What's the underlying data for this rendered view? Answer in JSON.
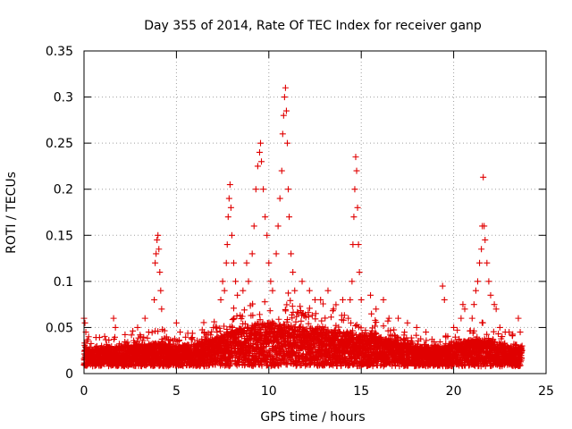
{
  "chart_data": {
    "type": "scatter",
    "title": "Day 355 of 2014, Rate Of TEC Index for receiver ganp",
    "xlabel": "GPS time / hours",
    "ylabel": "ROTI / TECUs",
    "xlim": [
      0,
      25
    ],
    "ylim": [
      0,
      0.35
    ],
    "x_ticks": [
      0,
      5,
      10,
      15,
      20,
      25
    ],
    "x_tick_labels": [
      "0",
      "5",
      "10",
      "15",
      "20",
      "25"
    ],
    "y_ticks": [
      0,
      0.05,
      0.1,
      0.15,
      0.2,
      0.25,
      0.3,
      0.35
    ],
    "y_tick_labels": [
      "0",
      "0.05",
      "0.1",
      "0.15",
      "0.2",
      "0.25",
      "0.3",
      "0.35"
    ],
    "grid": true,
    "marker": "plus",
    "marker_color": "#e00000",
    "series": [
      {
        "name": "ROTI",
        "points": [
          [
            0.0,
            0.06
          ],
          [
            0.05,
            0.055
          ],
          [
            0.1,
            0.045
          ],
          [
            0.15,
            0.035
          ],
          [
            0.2,
            0.025
          ],
          [
            0.25,
            0.04
          ],
          [
            0.3,
            0.02
          ],
          [
            1.6,
            0.06
          ],
          [
            1.7,
            0.05
          ],
          [
            2.9,
            0.05
          ],
          [
            3.3,
            0.06
          ],
          [
            3.5,
            0.045
          ],
          [
            3.8,
            0.08
          ],
          [
            3.85,
            0.12
          ],
          [
            3.9,
            0.13
          ],
          [
            3.95,
            0.145
          ],
          [
            4.0,
            0.15
          ],
          [
            4.05,
            0.135
          ],
          [
            4.1,
            0.11
          ],
          [
            4.15,
            0.09
          ],
          [
            4.2,
            0.07
          ],
          [
            5.0,
            0.055
          ],
          [
            5.2,
            0.045
          ],
          [
            6.5,
            0.045
          ],
          [
            7.0,
            0.05
          ],
          [
            7.2,
            0.045
          ],
          [
            7.4,
            0.08
          ],
          [
            7.5,
            0.1
          ],
          [
            7.6,
            0.09
          ],
          [
            7.7,
            0.12
          ],
          [
            7.75,
            0.14
          ],
          [
            7.8,
            0.17
          ],
          [
            7.85,
            0.19
          ],
          [
            7.9,
            0.205
          ],
          [
            7.95,
            0.18
          ],
          [
            8.0,
            0.15
          ],
          [
            8.1,
            0.12
          ],
          [
            8.2,
            0.1
          ],
          [
            8.3,
            0.085
          ],
          [
            8.6,
            0.09
          ],
          [
            8.8,
            0.12
          ],
          [
            8.9,
            0.1
          ],
          [
            9.1,
            0.13
          ],
          [
            9.2,
            0.16
          ],
          [
            9.3,
            0.2
          ],
          [
            9.4,
            0.225
          ],
          [
            9.5,
            0.24
          ],
          [
            9.55,
            0.25
          ],
          [
            9.6,
            0.23
          ],
          [
            9.7,
            0.2
          ],
          [
            9.8,
            0.17
          ],
          [
            9.9,
            0.15
          ],
          [
            10.0,
            0.12
          ],
          [
            10.1,
            0.1
          ],
          [
            10.2,
            0.09
          ],
          [
            10.4,
            0.13
          ],
          [
            10.5,
            0.16
          ],
          [
            10.6,
            0.19
          ],
          [
            10.7,
            0.22
          ],
          [
            10.75,
            0.26
          ],
          [
            10.8,
            0.28
          ],
          [
            10.85,
            0.3
          ],
          [
            10.9,
            0.31
          ],
          [
            10.95,
            0.285
          ],
          [
            11.0,
            0.25
          ],
          [
            11.05,
            0.2
          ],
          [
            11.1,
            0.17
          ],
          [
            11.2,
            0.13
          ],
          [
            11.3,
            0.11
          ],
          [
            11.4,
            0.09
          ],
          [
            11.8,
            0.1
          ],
          [
            12.2,
            0.09
          ],
          [
            12.5,
            0.08
          ],
          [
            12.8,
            0.08
          ],
          [
            13.2,
            0.09
          ],
          [
            13.5,
            0.07
          ],
          [
            14.0,
            0.08
          ],
          [
            14.3,
            0.06
          ],
          [
            14.4,
            0.08
          ],
          [
            14.5,
            0.1
          ],
          [
            14.55,
            0.14
          ],
          [
            14.6,
            0.17
          ],
          [
            14.65,
            0.2
          ],
          [
            14.7,
            0.235
          ],
          [
            14.75,
            0.22
          ],
          [
            14.8,
            0.18
          ],
          [
            14.85,
            0.14
          ],
          [
            14.9,
            0.11
          ],
          [
            15.0,
            0.08
          ],
          [
            15.5,
            0.085
          ],
          [
            15.8,
            0.07
          ],
          [
            16.2,
            0.08
          ],
          [
            16.5,
            0.06
          ],
          [
            17.0,
            0.06
          ],
          [
            17.5,
            0.055
          ],
          [
            18.0,
            0.05
          ],
          [
            18.5,
            0.045
          ],
          [
            19.4,
            0.095
          ],
          [
            19.5,
            0.08
          ],
          [
            20.0,
            0.05
          ],
          [
            20.4,
            0.06
          ],
          [
            20.5,
            0.075
          ],
          [
            20.6,
            0.07
          ],
          [
            21.0,
            0.06
          ],
          [
            21.1,
            0.075
          ],
          [
            21.2,
            0.09
          ],
          [
            21.3,
            0.1
          ],
          [
            21.4,
            0.12
          ],
          [
            21.5,
            0.135
          ],
          [
            21.55,
            0.16
          ],
          [
            21.6,
            0.213
          ],
          [
            21.65,
            0.16
          ],
          [
            21.7,
            0.145
          ],
          [
            21.8,
            0.12
          ],
          [
            21.9,
            0.1
          ],
          [
            22.0,
            0.085
          ],
          [
            22.2,
            0.075
          ],
          [
            22.3,
            0.07
          ],
          [
            22.5,
            0.05
          ],
          [
            23.0,
            0.045
          ],
          [
            23.5,
            0.06
          ],
          [
            23.6,
            0.045
          ],
          [
            23.7,
            0.03
          ]
        ]
      }
    ],
    "base_band": {
      "description": "dense cloud of markers along the whole day",
      "levels": [
        [
          0,
          0.018
        ],
        [
          1,
          0.02
        ],
        [
          2,
          0.022
        ],
        [
          3,
          0.024
        ],
        [
          4,
          0.025
        ],
        [
          5,
          0.022
        ],
        [
          6,
          0.024
        ],
        [
          7,
          0.03
        ],
        [
          8,
          0.038
        ],
        [
          9,
          0.045
        ],
        [
          10,
          0.048
        ],
        [
          11,
          0.045
        ],
        [
          12,
          0.042
        ],
        [
          13,
          0.04
        ],
        [
          14,
          0.038
        ],
        [
          15,
          0.035
        ],
        [
          16,
          0.032
        ],
        [
          17,
          0.028
        ],
        [
          18,
          0.022
        ],
        [
          19,
          0.02
        ],
        [
          20,
          0.024
        ],
        [
          21,
          0.03
        ],
        [
          22,
          0.028
        ],
        [
          23,
          0.022
        ],
        [
          23.7,
          0.02
        ]
      ]
    }
  }
}
